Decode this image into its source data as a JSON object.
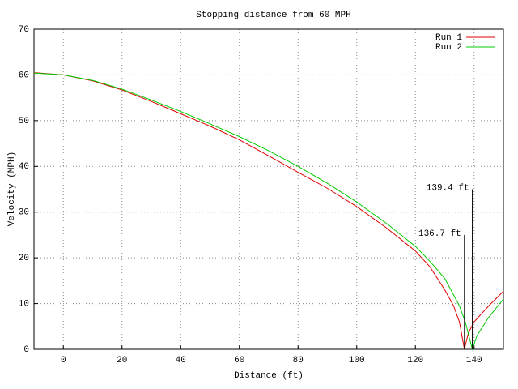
{
  "chart_data": {
    "type": "line",
    "title": "Stopping distance from 60 MPH",
    "xlabel": "Distance (ft)",
    "ylabel": "Velocity (MPH)",
    "xlim": [
      -10,
      150
    ],
    "xticks": [
      0,
      20,
      40,
      60,
      80,
      100,
      120,
      140
    ],
    "ylim": [
      0,
      70
    ],
    "yticks": [
      0,
      10,
      20,
      30,
      40,
      50,
      60,
      70
    ],
    "grid": true,
    "legend": "top-right",
    "series": [
      {
        "name": "Run 1",
        "color": "#dd0000",
        "x": [
          -10,
          0,
          10,
          20,
          30,
          40,
          50,
          60,
          70,
          80,
          90,
          100,
          110,
          120,
          125,
          130,
          133,
          135,
          136.7,
          138,
          140,
          145,
          150
        ],
        "values": [
          60.5,
          60,
          58.7,
          56.7,
          54.2,
          51.5,
          48.8,
          45.8,
          42.3,
          38.7,
          35.2,
          31.2,
          26.6,
          21.5,
          18,
          13,
          9.5,
          6,
          0,
          3.5,
          6,
          9.5,
          12.7
        ]
      },
      {
        "name": "Run 2",
        "color": "#00cc00",
        "x": [
          -10,
          0,
          10,
          20,
          30,
          40,
          50,
          60,
          70,
          80,
          90,
          100,
          110,
          120,
          125,
          130,
          135,
          137,
          139.4,
          141,
          145,
          150
        ],
        "values": [
          60.4,
          60,
          58.8,
          56.9,
          54.5,
          52,
          49.3,
          46.5,
          43.4,
          40,
          36.3,
          32.2,
          27.6,
          22.5,
          19.2,
          15.5,
          9.5,
          6,
          0,
          3,
          7,
          11
        ]
      }
    ],
    "annotations": [
      {
        "x": 136.7,
        "y": 25,
        "label": "136.7 ft"
      },
      {
        "x": 139.4,
        "y": 35,
        "label": "139.4 ft"
      }
    ]
  }
}
